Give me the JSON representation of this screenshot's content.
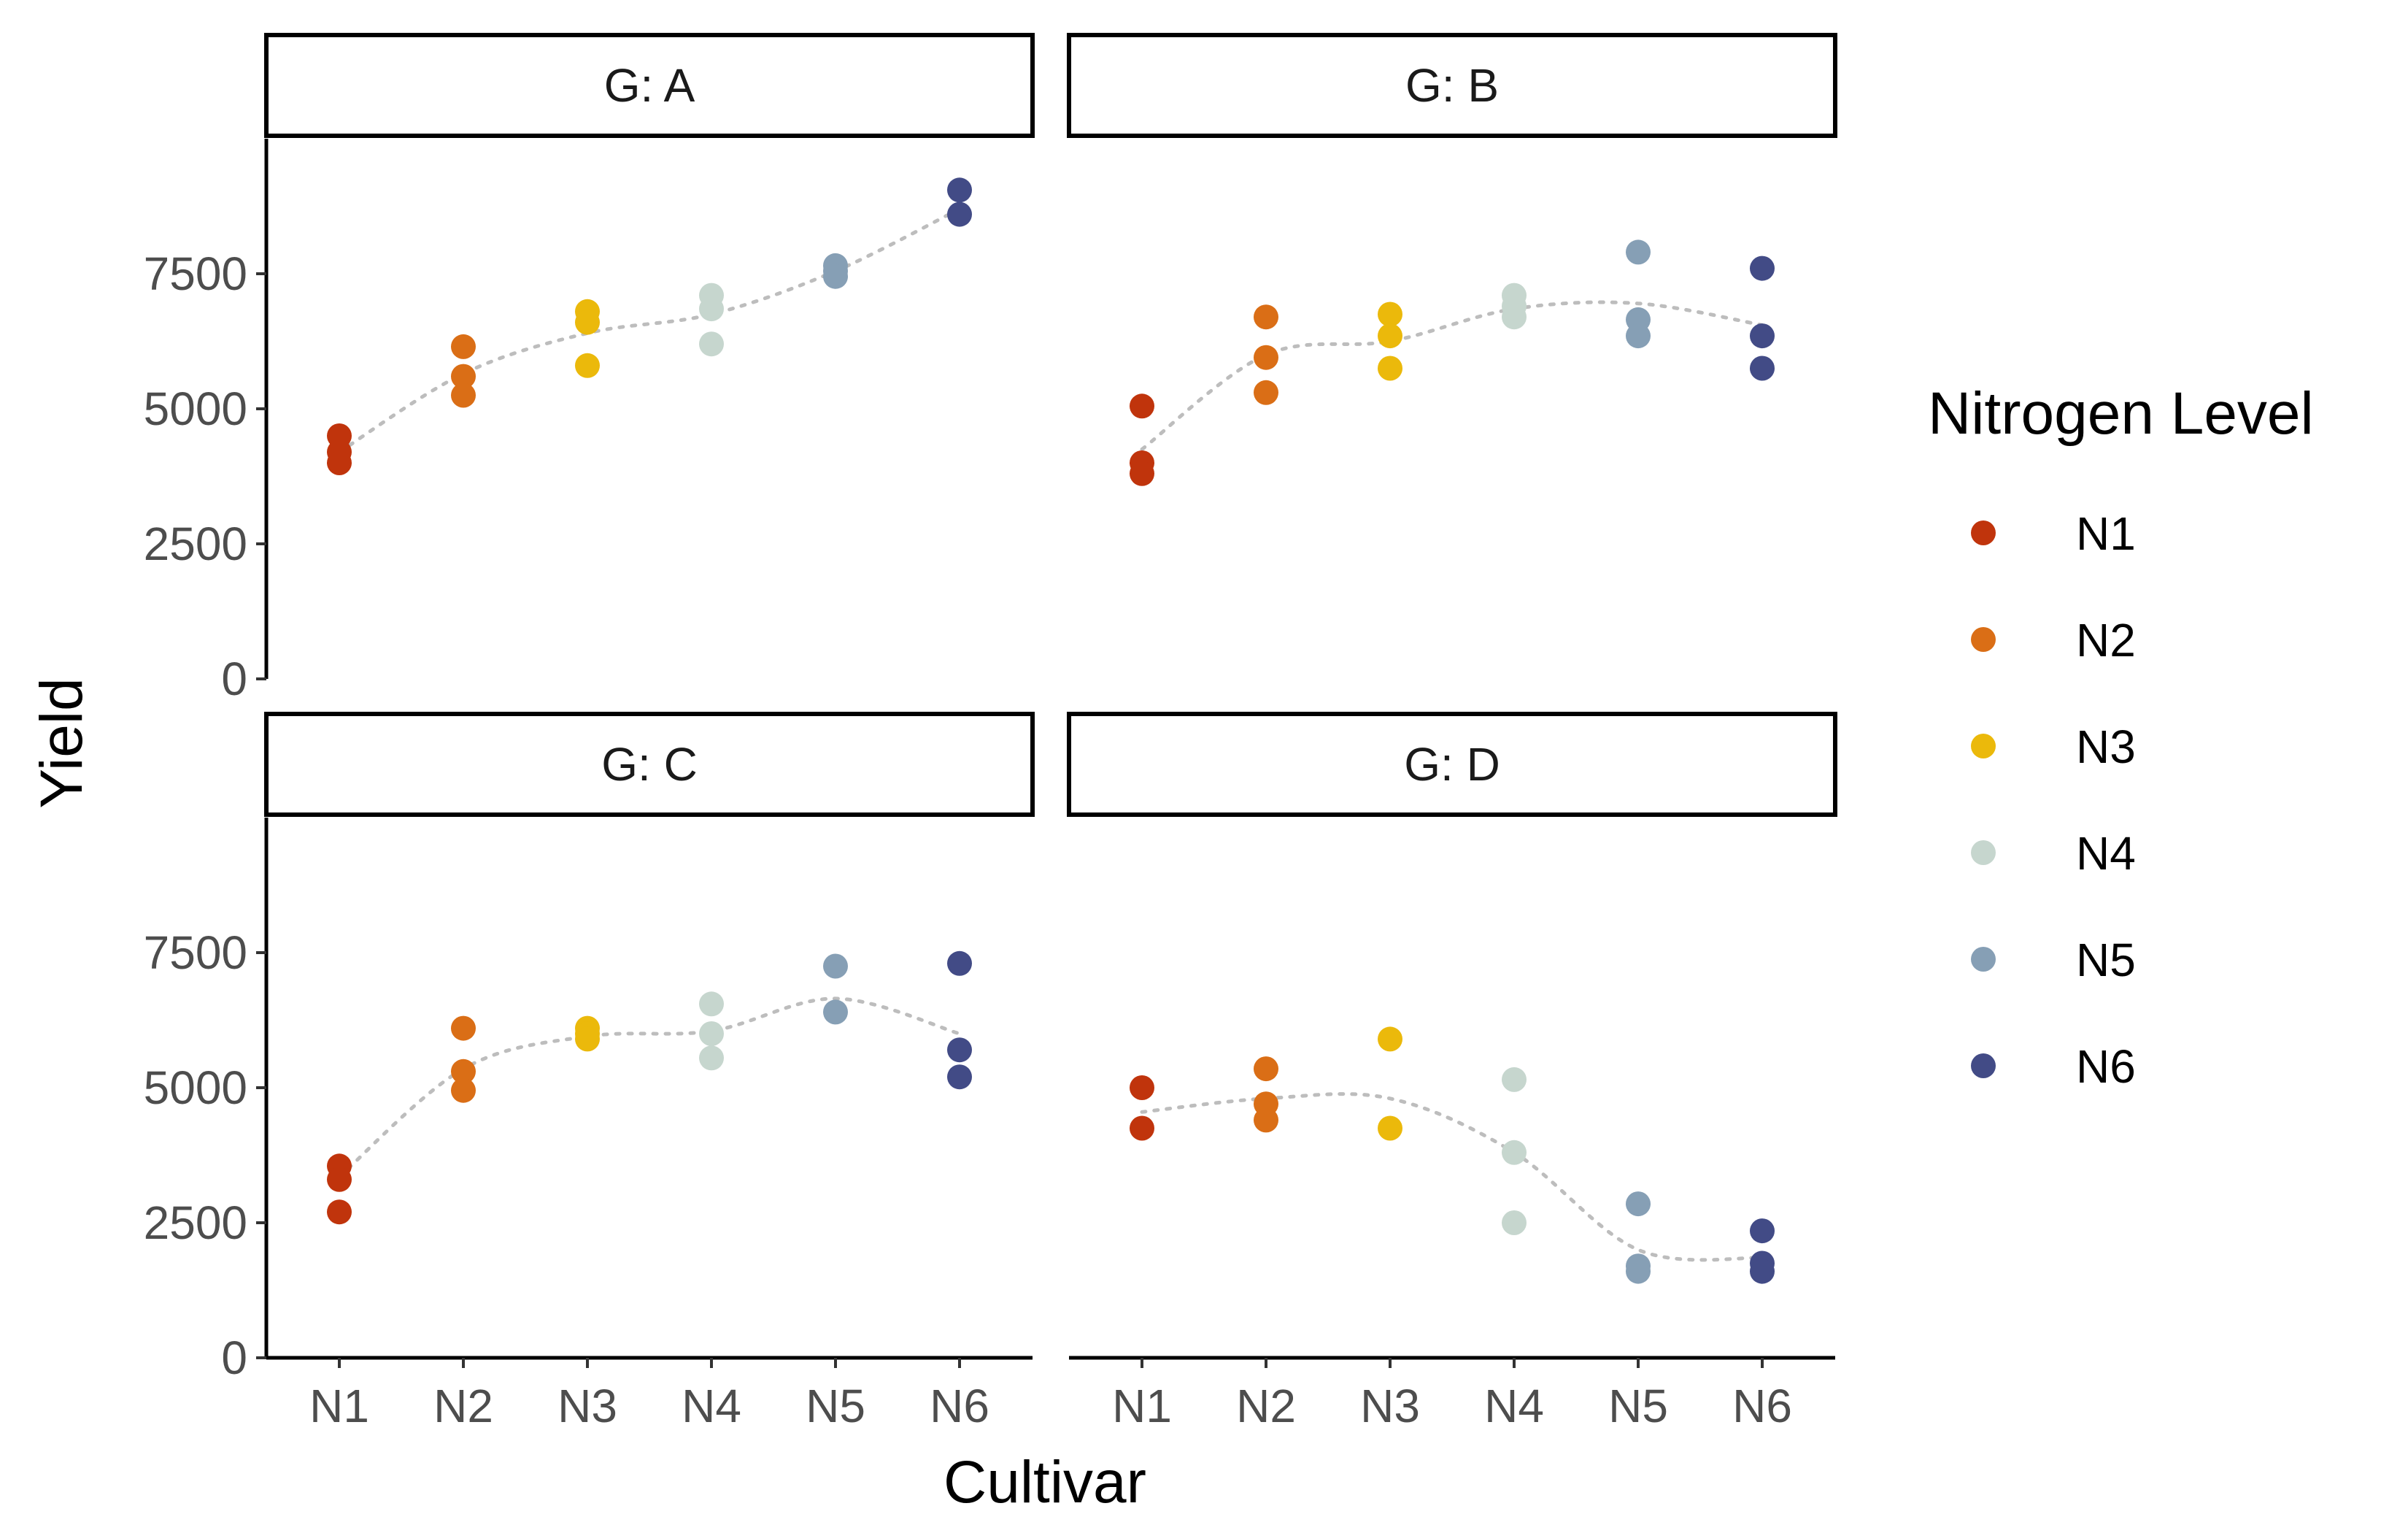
{
  "chart_data": {
    "type": "scatter",
    "layout": "facet-grid 2x2",
    "xlabel": "Cultivar",
    "ylabel": "Yield",
    "categories": [
      "N1",
      "N2",
      "N3",
      "N4",
      "N5",
      "N6"
    ],
    "ylim": [
      0,
      10000
    ],
    "yticks": [
      0,
      2500,
      5000,
      7500
    ],
    "grid": false,
    "trend_line": "smoothed, dotted grey",
    "legend": {
      "title": "Nitrogen Level",
      "position": "right",
      "entries": [
        {
          "name": "N1",
          "color": "#C0340C"
        },
        {
          "name": "N2",
          "color": "#DA6E16"
        },
        {
          "name": "N3",
          "color": "#EBB90B"
        },
        {
          "name": "N4",
          "color": "#C6D6CE"
        },
        {
          "name": "N5",
          "color": "#869FB5"
        },
        {
          "name": "N6",
          "color": "#424B86"
        }
      ]
    },
    "facets": [
      {
        "label": "G: A",
        "points": {
          "N1": [
            4500,
            4200,
            4000
          ],
          "N2": [
            6150,
            5600,
            5250
          ],
          "N3": [
            6800,
            6600,
            5800
          ],
          "N4": [
            7100,
            6850,
            6200
          ],
          "N5": [
            7650,
            7550,
            7450
          ],
          "N6": [
            9050,
            8600
          ]
        },
        "trend": [
          4200,
          5650,
          6400,
          6750,
          7550,
          8700
        ]
      },
      {
        "label": "G: B",
        "points": {
          "N1": [
            5050,
            4000,
            3800
          ],
          "N2": [
            6700,
            5950,
            5300
          ],
          "N3": [
            6750,
            6350,
            5750
          ],
          "N4": [
            7100,
            6900,
            6700
          ],
          "N5": [
            7900,
            6650,
            6350
          ],
          "N6": [
            7600,
            6350,
            5750
          ]
        },
        "trend": [
          4250,
          6000,
          6250,
          6850,
          6950,
          6550
        ]
      },
      {
        "label": "G: C",
        "points": {
          "N1": [
            3550,
            3300,
            2700
          ],
          "N2": [
            6100,
            5300,
            4950
          ],
          "N3": [
            6100,
            6000,
            5900
          ],
          "N4": [
            6550,
            6000,
            5550
          ],
          "N5": [
            7250,
            6400
          ],
          "N6": [
            7300,
            5700,
            5200
          ]
        },
        "trend": [
          3350,
          5350,
          5950,
          6050,
          6650,
          6000
        ]
      },
      {
        "label": "G: D",
        "points": {
          "N1": [
            5000,
            4250
          ],
          "N2": [
            5350,
            4700,
            4400
          ],
          "N3": [
            5900,
            4250
          ],
          "N4": [
            5150,
            3800,
            2500
          ],
          "N5": [
            2850,
            1700,
            1600
          ],
          "N6": [
            2350,
            1750,
            1600
          ]
        },
        "trend": [
          4550,
          4800,
          4800,
          3800,
          2000,
          1850
        ]
      }
    ]
  }
}
